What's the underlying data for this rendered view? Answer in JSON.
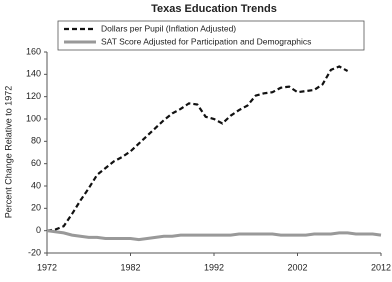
{
  "chart_data": {
    "type": "line",
    "title": "Texas Education Trends",
    "y_label": "Percent Change Relative to 1972",
    "x": [
      1972,
      1973,
      1974,
      1975,
      1976,
      1977,
      1978,
      1979,
      1980,
      1981,
      1982,
      1983,
      1984,
      1985,
      1986,
      1987,
      1988,
      1989,
      1990,
      1991,
      1992,
      1993,
      1994,
      1995,
      1996,
      1997,
      1998,
      1999,
      2000,
      2001,
      2002,
      2003,
      2004,
      2005,
      2006,
      2007,
      2008,
      2009,
      2010,
      2011,
      2012
    ],
    "series": [
      {
        "name": "Dollars per Pupil (Inflation Adjusted)",
        "color": "#111111",
        "dash": true,
        "values": [
          0,
          1,
          4,
          15,
          27,
          38,
          50,
          56,
          62,
          66,
          71,
          78,
          85,
          92,
          99,
          105,
          109,
          114,
          113,
          102,
          100,
          96,
          103,
          108,
          112,
          121,
          123,
          124,
          128,
          129,
          124,
          125,
          126,
          131,
          144,
          147,
          143,
          null,
          null,
          null,
          null
        ]
      },
      {
        "name": "SAT Score Adjusted for Participation and Demographics",
        "color": "#999999",
        "dash": false,
        "values": [
          0,
          -1,
          -2,
          -4,
          -5,
          -6,
          -6,
          -7,
          -7,
          -7,
          -7,
          -8,
          -7,
          -6,
          -5,
          -5,
          -4,
          -4,
          -4,
          -4,
          -4,
          -4,
          -4,
          -3,
          -3,
          -3,
          -3,
          -3,
          -4,
          -4,
          -4,
          -4,
          -3,
          -3,
          -3,
          -2,
          -2,
          -3,
          -3,
          -3,
          -4
        ]
      }
    ],
    "xlim": [
      1972,
      2012
    ],
    "xticks": [
      1972,
      1982,
      1992,
      2002,
      2012
    ],
    "ylim": [
      -20,
      160
    ],
    "yticks": [
      -20,
      0,
      20,
      40,
      60,
      80,
      100,
      120,
      140,
      160
    ],
    "legend": "top"
  }
}
